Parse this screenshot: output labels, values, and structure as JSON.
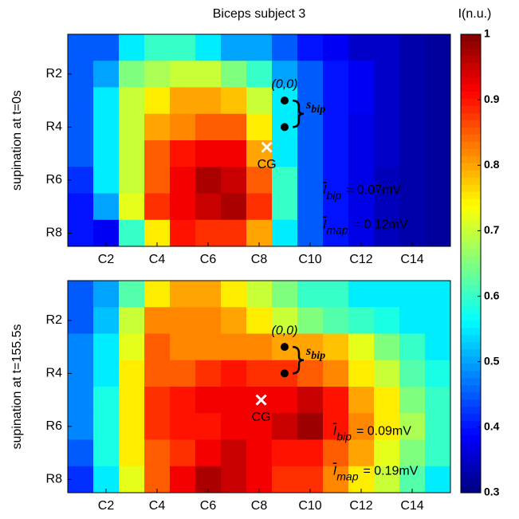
{
  "chart_data": [
    {
      "type": "heatmap",
      "title": "Biceps subject 3",
      "ylabel": "supination at t=0s",
      "xlim": [
        0.5,
        15.5
      ],
      "ylim": [
        0.5,
        8.5
      ],
      "xticks": [
        {
          "value": 2,
          "label": "C2"
        },
        {
          "value": 4,
          "label": "C4"
        },
        {
          "value": 6,
          "label": "C6"
        },
        {
          "value": 8,
          "label": "C8"
        },
        {
          "value": 10,
          "label": "C10"
        },
        {
          "value": 12,
          "label": "C12"
        },
        {
          "value": 14,
          "label": "C14"
        }
      ],
      "yticks": [
        {
          "value": 2,
          "label": "R2"
        },
        {
          "value": 4,
          "label": "R4"
        },
        {
          "value": 6,
          "label": "R6"
        },
        {
          "value": 8,
          "label": "R8"
        }
      ],
      "values": [
        [
          0.45,
          0.45,
          0.55,
          0.6,
          0.6,
          0.55,
          0.5,
          0.5,
          0.45,
          0.4,
          0.38,
          0.35,
          0.35,
          0.33,
          0.32
        ],
        [
          0.45,
          0.5,
          0.65,
          0.68,
          0.7,
          0.7,
          0.65,
          0.6,
          0.5,
          0.45,
          0.4,
          0.38,
          0.35,
          0.33,
          0.32
        ],
        [
          0.45,
          0.55,
          0.7,
          0.75,
          0.8,
          0.8,
          0.78,
          0.7,
          0.55,
          0.45,
          0.4,
          0.38,
          0.35,
          0.33,
          0.32
        ],
        [
          0.45,
          0.55,
          0.7,
          0.8,
          0.82,
          0.85,
          0.85,
          0.75,
          0.55,
          0.45,
          0.4,
          0.37,
          0.35,
          0.33,
          0.32
        ],
        [
          0.45,
          0.55,
          0.7,
          0.85,
          0.9,
          0.92,
          0.92,
          0.8,
          0.55,
          0.45,
          0.4,
          0.37,
          0.35,
          0.33,
          0.32
        ],
        [
          0.42,
          0.55,
          0.7,
          0.85,
          0.92,
          0.97,
          0.95,
          0.85,
          0.6,
          0.45,
          0.4,
          0.37,
          0.34,
          0.33,
          0.32
        ],
        [
          0.4,
          0.5,
          0.72,
          0.88,
          0.92,
          0.95,
          0.97,
          0.88,
          0.6,
          0.45,
          0.4,
          0.37,
          0.34,
          0.33,
          0.32
        ],
        [
          0.4,
          0.38,
          0.6,
          0.75,
          0.9,
          0.88,
          0.88,
          0.8,
          0.55,
          0.45,
          0.4,
          0.37,
          0.34,
          0.33,
          0.32
        ]
      ],
      "annotations": {
        "origin": "(0,0)",
        "s": "s",
        "s_sub": "bip",
        "cg": "CG",
        "ibip": {
          "symbol": "I",
          "sub": "bip",
          "text": "= 0.07mV"
        },
        "imap": {
          "symbol": "I",
          "sub": "map",
          "text": "= 0.12mV"
        }
      }
    },
    {
      "type": "heatmap",
      "ylabel": "supination at t=155.5s",
      "xlim": [
        0.5,
        15.5
      ],
      "ylim": [
        0.5,
        8.5
      ],
      "xticks": [
        {
          "value": 2,
          "label": "C2"
        },
        {
          "value": 4,
          "label": "C4"
        },
        {
          "value": 6,
          "label": "C6"
        },
        {
          "value": 8,
          "label": "C8"
        },
        {
          "value": 10,
          "label": "C10"
        },
        {
          "value": 12,
          "label": "C12"
        },
        {
          "value": 14,
          "label": "C14"
        }
      ],
      "yticks": [
        {
          "value": 2,
          "label": "R2"
        },
        {
          "value": 4,
          "label": "R4"
        },
        {
          "value": 6,
          "label": "R6"
        },
        {
          "value": 8,
          "label": "R8"
        }
      ],
      "values": [
        [
          0.45,
          0.5,
          0.62,
          0.75,
          0.8,
          0.8,
          0.75,
          0.7,
          0.65,
          0.6,
          0.6,
          0.55,
          0.55,
          0.55,
          0.55
        ],
        [
          0.45,
          0.52,
          0.7,
          0.82,
          0.82,
          0.82,
          0.8,
          0.75,
          0.7,
          0.65,
          0.62,
          0.6,
          0.58,
          0.55,
          0.55
        ],
        [
          0.48,
          0.55,
          0.72,
          0.85,
          0.82,
          0.82,
          0.82,
          0.82,
          0.8,
          0.8,
          0.78,
          0.72,
          0.65,
          0.6,
          0.55
        ],
        [
          0.48,
          0.55,
          0.75,
          0.85,
          0.85,
          0.88,
          0.9,
          0.88,
          0.88,
          0.85,
          0.82,
          0.75,
          0.7,
          0.62,
          0.58
        ],
        [
          0.48,
          0.58,
          0.75,
          0.88,
          0.9,
          0.92,
          0.92,
          0.92,
          0.92,
          0.95,
          0.9,
          0.8,
          0.75,
          0.65,
          0.6
        ],
        [
          0.48,
          0.58,
          0.75,
          0.88,
          0.9,
          0.9,
          0.92,
          0.92,
          0.95,
          0.98,
          0.9,
          0.82,
          0.75,
          0.68,
          0.6
        ],
        [
          0.45,
          0.58,
          0.75,
          0.85,
          0.88,
          0.92,
          0.95,
          0.92,
          0.9,
          0.9,
          0.85,
          0.8,
          0.72,
          0.65,
          0.6
        ],
        [
          0.42,
          0.55,
          0.72,
          0.85,
          0.92,
          0.97,
          0.95,
          0.92,
          0.88,
          0.88,
          0.82,
          0.75,
          0.7,
          0.62,
          0.55
        ]
      ],
      "annotations": {
        "origin": "(0,0)",
        "s": "s",
        "s_sub": "bip",
        "cg": "CG",
        "ibip": {
          "symbol": "I",
          "sub": "bip",
          "text": "= 0.09mV"
        },
        "imap": {
          "symbol": "I",
          "sub": "map",
          "text": "= 0.19mV"
        }
      }
    },
    {
      "type": "colorbar",
      "label": "I(n.u.)",
      "colormap": "jet",
      "ylim": [
        0.3,
        1
      ],
      "yticks": [
        0.3,
        0.4,
        0.5,
        0.6,
        0.7,
        0.8,
        0.9,
        1
      ]
    }
  ]
}
